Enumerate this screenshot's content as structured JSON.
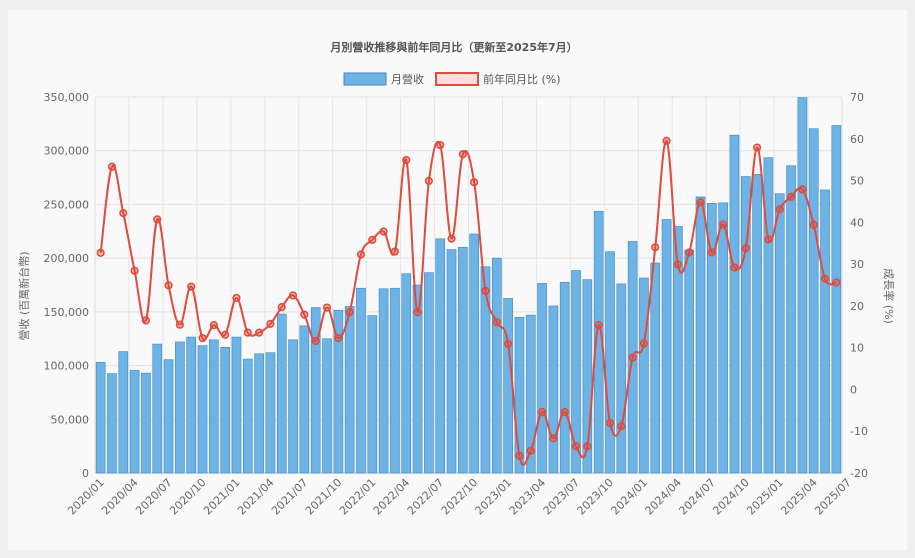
{
  "chart_data": {
    "type": "bar",
    "title": "月別營收推移與前年同月比（更新至2025年7月）",
    "ylabel": "營收 (百萬新台幣)",
    "y2label": "成長率 (%)",
    "ylim": [
      0,
      350000
    ],
    "y2lim": [
      -20,
      70
    ],
    "y_ticks": [
      "0",
      "50,000",
      "100,000",
      "150,000",
      "200,000",
      "250,000",
      "300,000",
      "350,000"
    ],
    "y2_ticks": [
      "-20",
      "-10",
      "0",
      "10",
      "20",
      "30",
      "40",
      "50",
      "60",
      "70"
    ],
    "x_tick_labels": [
      "2020/01",
      "2020/04",
      "2020/07",
      "2020/10",
      "2021/01",
      "2021/04",
      "2021/07",
      "2021/10",
      "2022/01",
      "2022/04",
      "2022/07",
      "2022/10",
      "2023/01",
      "2023/04",
      "2023/07",
      "2023/10",
      "2024/01",
      "2024/04",
      "2024/07",
      "2024/10",
      "2025/01",
      "2025/04",
      "2025/07"
    ],
    "legend_position": "top",
    "series": [
      {
        "name": "月營收",
        "type": "bar",
        "color": "#6db3e6",
        "border": "#3f86c4",
        "axis": "left",
        "values": [
          103000,
          92500,
          113000,
          95500,
          93000,
          120000,
          105500,
          122000,
          126500,
          118500,
          124000,
          117000,
          126500,
          106000,
          111000,
          112000,
          148000,
          124000,
          137000,
          154000,
          125000,
          151500,
          155000,
          172000,
          146500,
          171500,
          172000,
          185500,
          175000,
          186500,
          218000,
          208000,
          210000,
          222500,
          192000,
          200000,
          162500,
          145000,
          147000,
          176500,
          155500,
          177500,
          188500,
          180000,
          243500,
          206000,
          176000,
          215500,
          181500,
          195500,
          236000,
          229500,
          207500,
          257000,
          251000,
          251500,
          314500,
          276000,
          278000,
          293500,
          260000,
          286000,
          349500,
          320500,
          263500,
          323500
        ]
      },
      {
        "name": "前年同月比 (%)",
        "type": "line",
        "color": "#e04b3c",
        "axis": "right",
        "values": [
          32.7,
          53.3,
          42.2,
          28.4,
          16.5,
          40.7,
          24.9,
          15.5,
          24.6,
          12.3,
          15.4,
          13.1,
          21.9,
          13.6,
          13.6,
          15.7,
          19.7,
          22.5,
          17.9,
          11.6,
          19.6,
          12.3,
          18.5,
          32.3,
          35.8,
          37.8,
          33.0,
          54.9,
          18.5,
          49.9,
          58.5,
          36.1,
          56.3,
          49.6,
          23.6,
          16.1,
          10.9,
          -15.9,
          -14.7,
          -5.4,
          -11.7,
          -5.4,
          -13.6,
          -13.6,
          15.4,
          -8.0,
          -8.8,
          7.6,
          11.0,
          34.0,
          59.5,
          29.9,
          32.8,
          44.8,
          32.8,
          39.5,
          29.2,
          33.8,
          57.9,
          35.9,
          43.1,
          46.1,
          47.9,
          39.4,
          26.5,
          25.6
        ]
      }
    ],
    "grid": true
  }
}
